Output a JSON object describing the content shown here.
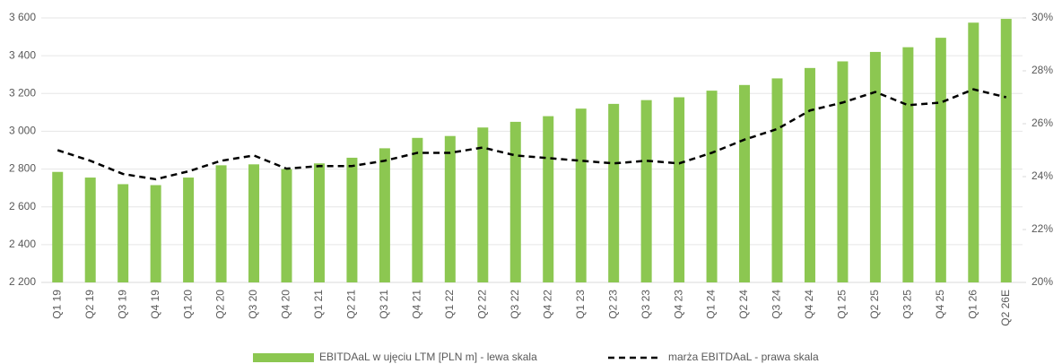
{
  "chart_data": {
    "type": "bar_line",
    "categories": [
      "Q1 19",
      "Q2 19",
      "Q3 19",
      "Q4 19",
      "Q1 20",
      "Q2 20",
      "Q3 20",
      "Q4 20",
      "Q1 21",
      "Q2 21",
      "Q3 21",
      "Q4 21",
      "Q1 22",
      "Q2 22",
      "Q3 22",
      "Q4 22",
      "Q1 23",
      "Q2 23",
      "Q3 23",
      "Q4 23",
      "Q1 24",
      "Q2 24",
      "Q3 24",
      "Q4 24",
      "Q1 25",
      "Q2 25",
      "Q3 25",
      "Q4 25",
      "Q1 26",
      "Q2 26E"
    ],
    "series": [
      {
        "name": "EBITDAaL w ujęciu LTM [PLN m] - lewa skala",
        "type": "bar",
        "color": "#8cc751",
        "values": [
          2785,
          2755,
          2720,
          2715,
          2755,
          2820,
          2825,
          2800,
          2830,
          2860,
          2910,
          2965,
          2975,
          3020,
          3050,
          3080,
          3120,
          3145,
          3165,
          3180,
          3215,
          3245,
          3280,
          3335,
          3370,
          3420,
          3445,
          3495,
          3575,
          3595
        ]
      },
      {
        "name": "marża EBITDAaL - prawa skala",
        "type": "line",
        "axis": "y2",
        "color": "#000000",
        "values": [
          25.0,
          24.6,
          24.1,
          23.9,
          24.2,
          24.6,
          24.8,
          24.3,
          24.4,
          24.4,
          24.6,
          24.9,
          24.9,
          25.1,
          24.8,
          24.7,
          24.6,
          24.5,
          24.6,
          24.5,
          24.9,
          25.4,
          25.8,
          26.5,
          26.8,
          27.2,
          26.7,
          26.8,
          27.3,
          27.0
        ]
      }
    ],
    "ylim": [
      2200,
      3600
    ],
    "yticks": [
      {
        "value": 2200,
        "label": "2 200"
      },
      {
        "value": 2400,
        "label": "2 400"
      },
      {
        "value": 2600,
        "label": "2 600"
      },
      {
        "value": 2800,
        "label": "2 800"
      },
      {
        "value": 3000,
        "label": "3 000"
      },
      {
        "value": 3200,
        "label": "3 200"
      },
      {
        "value": 3400,
        "label": "3 400"
      },
      {
        "value": 3600,
        "label": "3 600"
      }
    ],
    "y2lim": [
      20,
      30
    ],
    "y2ticks": [
      {
        "value": 20,
        "label": "20%"
      },
      {
        "value": 22,
        "label": "22%"
      },
      {
        "value": 24,
        "label": "24%"
      },
      {
        "value": 26,
        "label": "26%"
      },
      {
        "value": 28,
        "label": "28%"
      },
      {
        "value": 30,
        "label": "30%"
      }
    ],
    "grid": true,
    "legend": "bottom"
  }
}
